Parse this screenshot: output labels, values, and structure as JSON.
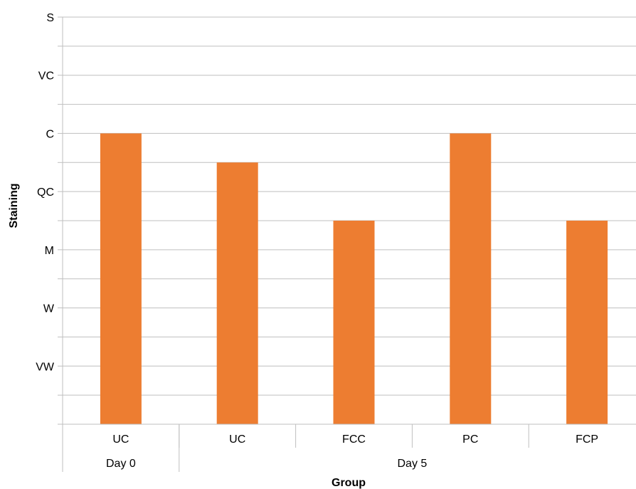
{
  "chart_data": {
    "type": "bar",
    "xlabel": "Group",
    "ylabel": "Staining",
    "y_levels": [
      "VW",
      "W",
      "M",
      "QC",
      "C",
      "VC",
      "S"
    ],
    "ylim": [
      0,
      7
    ],
    "y_ticks": [
      {
        "label": "VW",
        "value": 1
      },
      {
        "label": "W",
        "value": 2
      },
      {
        "label": "M",
        "value": 3
      },
      {
        "label": "QC",
        "value": 4
      },
      {
        "label": "C",
        "value": 5
      },
      {
        "label": "VC",
        "value": 6
      },
      {
        "label": "S",
        "value": 7
      }
    ],
    "categories": [
      "UC",
      "UC",
      "FCC",
      "PC",
      "FCP"
    ],
    "groups": [
      {
        "label": "Day 0",
        "span": 1
      },
      {
        "label": "Day 5",
        "span": 4
      }
    ],
    "values": [
      5,
      4.5,
      3.5,
      5,
      3.5
    ],
    "bar_color": "#ED7D31",
    "grid": true
  }
}
